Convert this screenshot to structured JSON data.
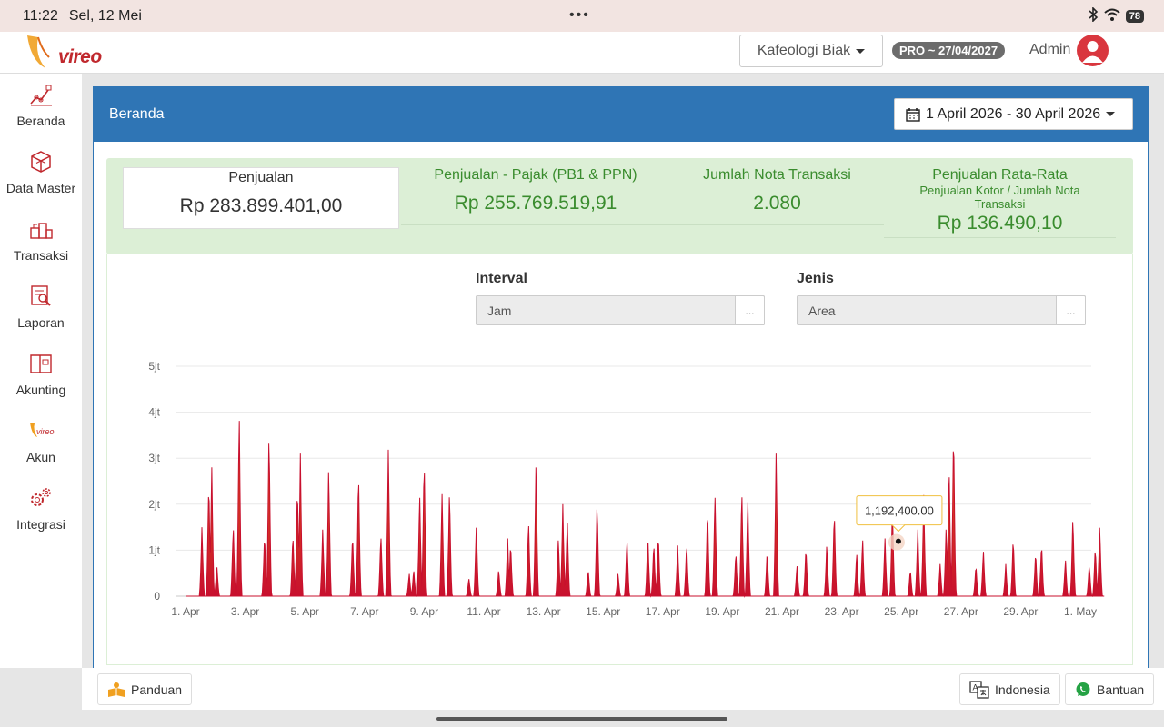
{
  "status_bar": {
    "time": "11:22",
    "date": "Sel, 12 Mei",
    "menu_dots": "•••",
    "battery": "78"
  },
  "header": {
    "outlet": "Kafeologi Biak",
    "pro_badge": "PRO ~ 27/04/2027",
    "user_label": "Admin",
    "brand_word": "vireo"
  },
  "sidebar": {
    "items": [
      {
        "label": "Beranda",
        "icon": "chart-line-icon"
      },
      {
        "label": "Data Master",
        "icon": "cube-icon"
      },
      {
        "label": "Transaksi",
        "icon": "boxes-icon"
      },
      {
        "label": "Laporan",
        "icon": "report-icon"
      },
      {
        "label": "Akunting",
        "icon": "book-icon"
      },
      {
        "label": "Akun",
        "icon": "vireo-logo-icon"
      },
      {
        "label": "Integrasi",
        "icon": "gears-icon"
      }
    ]
  },
  "page": {
    "title": "Beranda",
    "date_range": "1 April 2026 - 30 April 2026"
  },
  "summary": {
    "penjualan": {
      "label": "Penjualan",
      "value": "Rp 283.899.401,00"
    },
    "pajak": {
      "label": "Penjualan - Pajak (PB1 & PPN)",
      "value": "Rp 255.769.519,91"
    },
    "nota": {
      "label": "Jumlah Nota Transaksi",
      "value": "2.080"
    },
    "rata": {
      "label": "Penjualan Rata-Rata",
      "sub1": "Penjualan Kotor / Jumlah Nota",
      "sub2": "Transaksi",
      "value": "Rp 136.490,10"
    }
  },
  "filters": {
    "interval": {
      "label": "Interval",
      "value": "Jam",
      "button": "..."
    },
    "jenis": {
      "label": "Jenis",
      "value": "Area",
      "button": "..."
    }
  },
  "tooltip": {
    "text": "1,192,400.00"
  },
  "footer": {
    "guide": "Panduan",
    "language": "Indonesia",
    "help": "Bantuan"
  },
  "colors": {
    "primary": "#2f75b5",
    "summary_bg": "#dcefd6",
    "accent_green": "#3a8c2e",
    "area_low": "#c8102e",
    "area_high": "#f2d230"
  },
  "chart_data": {
    "type": "area",
    "y_tick_labels": [
      "0",
      "1jt",
      "2jt",
      "3jt",
      "4jt",
      "5jt"
    ],
    "ylim": [
      0,
      5000000
    ],
    "x_tick_labels": [
      "1. Apr",
      "3. Apr",
      "5. Apr",
      "7. Apr",
      "9. Apr",
      "11. Apr",
      "13. Apr",
      "15. Apr",
      "17. Apr",
      "19. Apr",
      "21. Apr",
      "23. Apr",
      "25. Apr",
      "27. Apr",
      "29. Apr",
      "1. May"
    ],
    "x_range_days": [
      0,
      30
    ],
    "peaks": [
      {
        "day": 0.55,
        "value": 1500000
      },
      {
        "day": 0.78,
        "value": 2600000
      },
      {
        "day": 0.88,
        "value": 2800000
      },
      {
        "day": 1.05,
        "value": 700000
      },
      {
        "day": 1.6,
        "value": 1600000
      },
      {
        "day": 1.8,
        "value": 4100000
      },
      {
        "day": 2.65,
        "value": 1400000
      },
      {
        "day": 2.8,
        "value": 3700000
      },
      {
        "day": 3.6,
        "value": 1400000
      },
      {
        "day": 3.75,
        "value": 2500000
      },
      {
        "day": 3.85,
        "value": 3100000
      },
      {
        "day": 4.6,
        "value": 1500000
      },
      {
        "day": 4.8,
        "value": 2900000
      },
      {
        "day": 5.6,
        "value": 1400000
      },
      {
        "day": 5.8,
        "value": 2800000
      },
      {
        "day": 6.55,
        "value": 1400000
      },
      {
        "day": 6.8,
        "value": 3300000
      },
      {
        "day": 7.5,
        "value": 500000
      },
      {
        "day": 7.65,
        "value": 600000
      },
      {
        "day": 7.85,
        "value": 2300000
      },
      {
        "day": 8.0,
        "value": 3100000
      },
      {
        "day": 8.6,
        "value": 2300000
      },
      {
        "day": 8.85,
        "value": 2400000
      },
      {
        "day": 9.5,
        "value": 400000
      },
      {
        "day": 9.75,
        "value": 1600000
      },
      {
        "day": 10.5,
        "value": 600000
      },
      {
        "day": 10.8,
        "value": 1300000
      },
      {
        "day": 10.9,
        "value": 1200000
      },
      {
        "day": 11.5,
        "value": 1700000
      },
      {
        "day": 11.75,
        "value": 2900000
      },
      {
        "day": 12.5,
        "value": 1300000
      },
      {
        "day": 12.65,
        "value": 2000000
      },
      {
        "day": 12.8,
        "value": 1700000
      },
      {
        "day": 13.5,
        "value": 600000
      },
      {
        "day": 13.8,
        "value": 2100000
      },
      {
        "day": 14.5,
        "value": 500000
      },
      {
        "day": 14.8,
        "value": 1300000
      },
      {
        "day": 15.5,
        "value": 1400000
      },
      {
        "day": 15.7,
        "value": 1200000
      },
      {
        "day": 15.85,
        "value": 1400000
      },
      {
        "day": 16.5,
        "value": 1100000
      },
      {
        "day": 16.8,
        "value": 1200000
      },
      {
        "day": 17.5,
        "value": 2000000
      },
      {
        "day": 17.75,
        "value": 2300000
      },
      {
        "day": 18.45,
        "value": 1000000
      },
      {
        "day": 18.65,
        "value": 2400000
      },
      {
        "day": 18.85,
        "value": 2200000
      },
      {
        "day": 19.5,
        "value": 1000000
      },
      {
        "day": 19.8,
        "value": 3100000
      },
      {
        "day": 20.5,
        "value": 700000
      },
      {
        "day": 20.8,
        "value": 1100000
      },
      {
        "day": 21.5,
        "value": 1200000
      },
      {
        "day": 21.75,
        "value": 1900000
      },
      {
        "day": 22.5,
        "value": 1000000
      },
      {
        "day": 22.7,
        "value": 1300000
      },
      {
        "day": 23.45,
        "value": 1300000
      },
      {
        "day": 23.7,
        "value": 2000000
      },
      {
        "day": 24.3,
        "value": 600000
      },
      {
        "day": 24.55,
        "value": 1500000
      },
      {
        "day": 24.75,
        "value": 2200000
      },
      {
        "day": 25.3,
        "value": 700000
      },
      {
        "day": 25.5,
        "value": 1500000
      },
      {
        "day": 25.6,
        "value": 3000000
      },
      {
        "day": 25.75,
        "value": 3800000
      },
      {
        "day": 26.5,
        "value": 700000
      },
      {
        "day": 26.75,
        "value": 1000000
      },
      {
        "day": 27.5,
        "value": 700000
      },
      {
        "day": 27.75,
        "value": 1300000
      },
      {
        "day": 28.5,
        "value": 1000000
      },
      {
        "day": 28.7,
        "value": 1200000
      },
      {
        "day": 29.5,
        "value": 800000
      },
      {
        "day": 29.75,
        "value": 1800000
      },
      {
        "day": 30.3,
        "value": 700000
      },
      {
        "day": 30.5,
        "value": 1100000
      },
      {
        "day": 30.65,
        "value": 1600000
      }
    ],
    "highlight": {
      "day": 23.9,
      "value": 1192400
    }
  }
}
